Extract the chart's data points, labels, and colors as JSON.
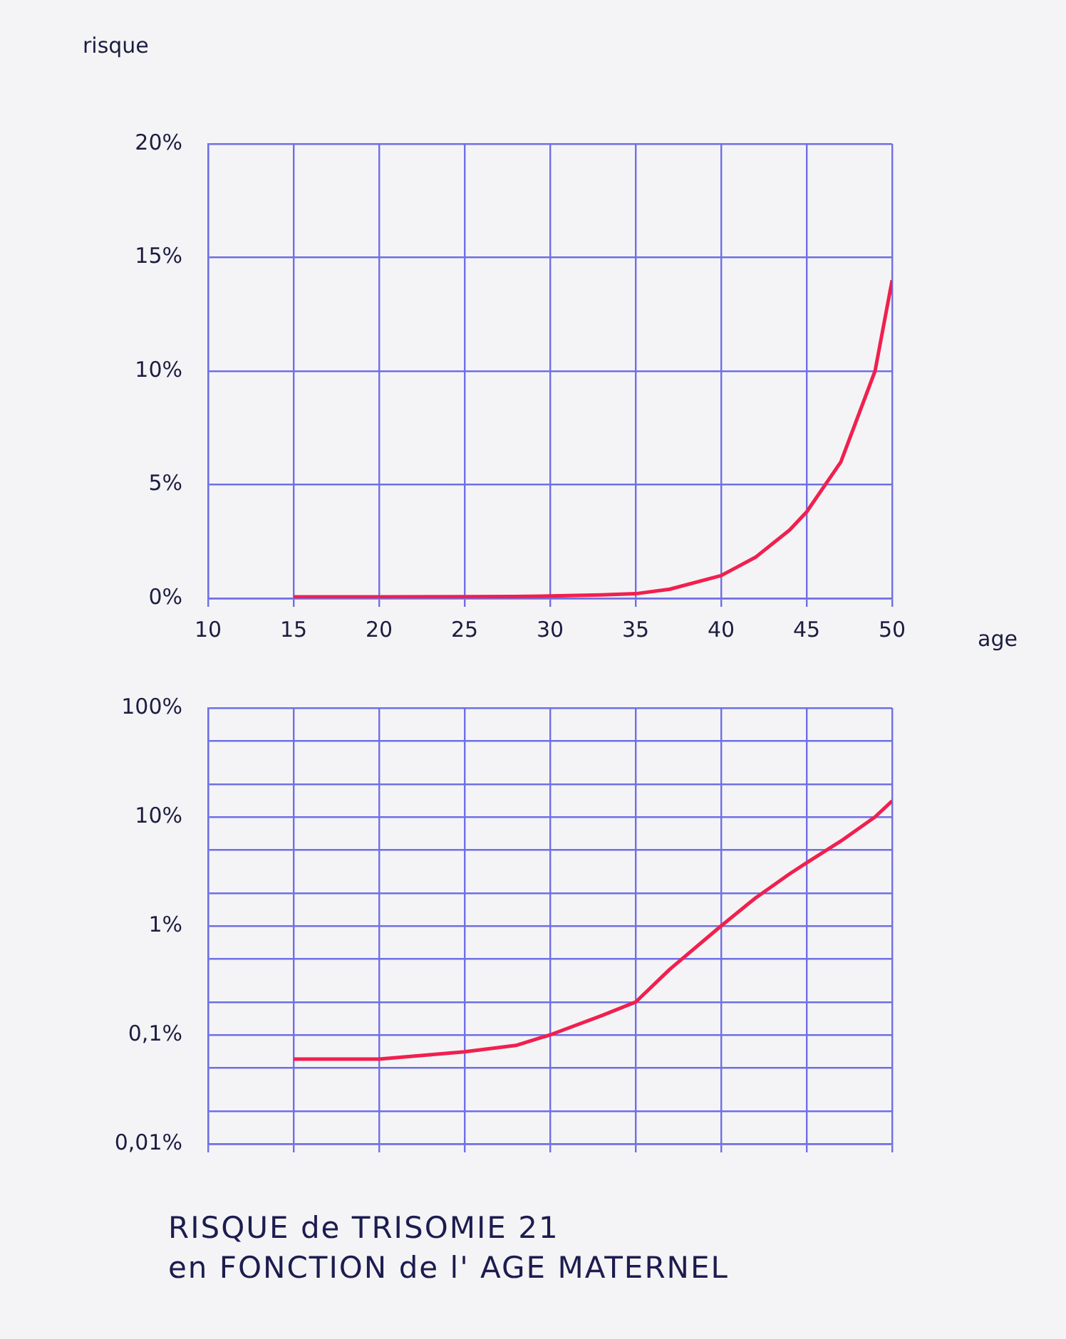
{
  "chart_data": [
    {
      "type": "line",
      "ylabel": "risque",
      "xlabel": "age",
      "color": "#f0204f",
      "marker": "none",
      "grid": true,
      "x": [
        15,
        20,
        25,
        28,
        30,
        33,
        35,
        37,
        40,
        42,
        44,
        45,
        47,
        49,
        50
      ],
      "values": [
        0.06,
        0.06,
        0.07,
        0.08,
        0.1,
        0.15,
        0.2,
        0.4,
        1,
        1.8,
        3,
        3.8,
        6,
        10,
        14
      ],
      "xlim": [
        10,
        50
      ],
      "xticks": [
        10,
        15,
        20,
        25,
        30,
        35,
        40,
        45,
        50
      ],
      "ylim": [
        0,
        20
      ],
      "yticks": [
        {
          "value": 0,
          "label": "0%"
        },
        {
          "value": 5,
          "label": "5%"
        },
        {
          "value": 10,
          "label": "10%"
        },
        {
          "value": 15,
          "label": "15%"
        },
        {
          "value": 20,
          "label": "20%"
        }
      ]
    },
    {
      "type": "line",
      "title": "RISQUE de TRISOMIE 21\nen FONCTION de l' AGE MATERNEL",
      "color": "#f0204f",
      "marker": "none",
      "grid": true,
      "log": "y",
      "tick_labels": "y",
      "x": [
        15,
        20,
        25,
        28,
        30,
        33,
        35,
        37,
        40,
        42,
        44,
        45,
        47,
        49,
        50
      ],
      "values": [
        0.06,
        0.06,
        0.07,
        0.08,
        0.1,
        0.15,
        0.2,
        0.4,
        1,
        1.8,
        3,
        3.8,
        6,
        10,
        14
      ],
      "xlim": [
        10,
        50
      ],
      "xticks": [
        {
          "value": 10,
          "label": null
        },
        {
          "value": 15,
          "label": null
        },
        {
          "value": 20,
          "label": null
        },
        {
          "value": 25,
          "label": null
        },
        {
          "value": 30,
          "label": null
        },
        {
          "value": 35,
          "label": null
        },
        {
          "value": 40,
          "label": null
        },
        {
          "value": 45,
          "label": null
        },
        {
          "value": 50,
          "label": null
        }
      ],
      "ylim": [
        0.01,
        100
      ],
      "yticks": [
        {
          "value": 0.01,
          "label": "0,01%"
        },
        {
          "value": 0.02,
          "label": null
        },
        {
          "value": 0.05,
          "label": null
        },
        {
          "value": 0.1,
          "label": "0,1%"
        },
        {
          "value": 0.2,
          "label": null
        },
        {
          "value": 0.5,
          "label": null
        },
        {
          "value": 1,
          "label": "1%"
        },
        {
          "value": 2,
          "label": null
        },
        {
          "value": 5,
          "label": null
        },
        {
          "value": 10,
          "label": "10%"
        },
        {
          "value": 20,
          "label": null
        },
        {
          "value": 50,
          "label": null
        },
        {
          "value": 100,
          "label": "100%"
        }
      ]
    }
  ]
}
